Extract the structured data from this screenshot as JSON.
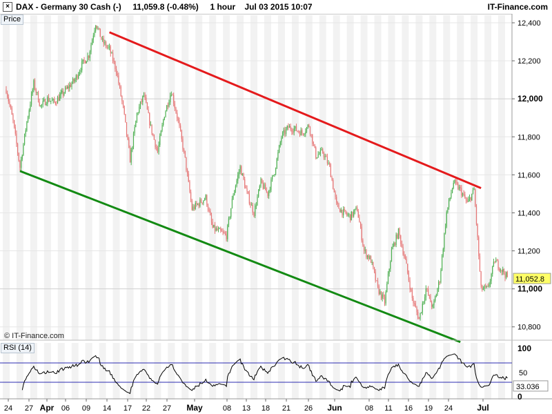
{
  "header": {
    "instrument": "DAX - Germany 30 Cash (-)",
    "last_change": "11,059.8 (-0.48%)",
    "timeframe": "1 hour",
    "datetime": "Jul 03 2015 10:07",
    "brand": "IT-Finance.com",
    "close_glyph": "×"
  },
  "price_panel": {
    "tag": "Price",
    "watermark": "© IT-Finance.com",
    "current_price_label": "11,052.8"
  },
  "rsi_panel": {
    "tag": "RSI (14)",
    "current_value_label": "33.036"
  },
  "colors": {
    "up_candle": "#4caf50",
    "down_candle": "#e57373",
    "resistance_line": "#e41a1c",
    "support_line": "#138a13",
    "rsi_line": "#000000",
    "rsi_bands": "#2b2bb0",
    "price_tag_bg": "#ffff66"
  },
  "chart_data": [
    {
      "type": "candlestick",
      "title": "DAX - Germany 30 Cash (-)",
      "ylim": [
        10730,
        12440
      ],
      "y_ticks": [
        10800,
        11000,
        11200,
        11400,
        11600,
        11800,
        12000,
        12200,
        12400
      ],
      "y_tick_labels": [
        "10,800",
        "11,000",
        "11,200",
        "11,400",
        "11,600",
        "11,800",
        "12,000",
        "12,200",
        "12,400"
      ],
      "y_bold_ticks": [
        "11,000",
        "12,000"
      ],
      "x_tick_labels": [
        "24",
        "27",
        "Apr",
        "06",
        "09",
        "14",
        "17",
        "22",
        "27",
        "May",
        "08",
        "13",
        "18",
        "21",
        "26",
        "Jun",
        "08",
        "11",
        "16",
        "19",
        "24",
        "Jul"
      ],
      "x_bold_ticks": [
        "Apr",
        "May",
        "Jun",
        "Jul"
      ],
      "vertical_grid": "alternating day bands",
      "price_path": [
        {
          "date": "Mar 24",
          "close": 12050
        },
        {
          "date": "Mar 25",
          "close": 11880
        },
        {
          "date": "Mar 26",
          "close": 11640
        },
        {
          "date": "Mar 27",
          "close": 11880
        },
        {
          "date": "Mar 30",
          "close": 12080
        },
        {
          "date": "Mar 31",
          "close": 11960
        },
        {
          "date": "Apr 01",
          "close": 12000
        },
        {
          "date": "Apr 02",
          "close": 11980
        },
        {
          "date": "Apr 07",
          "close": 12100
        },
        {
          "date": "Apr 08",
          "close": 12180
        },
        {
          "date": "Apr 09",
          "close": 12230
        },
        {
          "date": "Apr 10",
          "close": 12400
        },
        {
          "date": "Apr 13",
          "close": 12300
        },
        {
          "date": "Apr 14",
          "close": 12260
        },
        {
          "date": "Apr 15",
          "close": 12150
        },
        {
          "date": "Apr 16",
          "close": 11950
        },
        {
          "date": "Apr 17",
          "close": 11680
        },
        {
          "date": "Apr 20",
          "close": 11920
        },
        {
          "date": "Apr 21",
          "close": 12020
        },
        {
          "date": "Apr 22",
          "close": 11850
        },
        {
          "date": "Apr 23",
          "close": 11720
        },
        {
          "date": "Apr 24",
          "close": 11920
        },
        {
          "date": "Apr 27",
          "close": 12040
        },
        {
          "date": "Apr 28",
          "close": 11880
        },
        {
          "date": "Apr 29",
          "close": 11680
        },
        {
          "date": "Apr 30",
          "close": 11420
        },
        {
          "date": "May 04",
          "close": 11480
        },
        {
          "date": "May 05",
          "close": 11320
        },
        {
          "date": "May 06",
          "close": 11300
        },
        {
          "date": "May 07",
          "close": 11280
        },
        {
          "date": "May 08",
          "close": 11500
        },
        {
          "date": "May 11",
          "close": 11640
        },
        {
          "date": "May 12",
          "close": 11500
        },
        {
          "date": "May 13",
          "close": 11400
        },
        {
          "date": "May 14",
          "close": 11560
        },
        {
          "date": "May 15",
          "close": 11500
        },
        {
          "date": "May 18",
          "close": 11620
        },
        {
          "date": "May 19",
          "close": 11800
        },
        {
          "date": "May 20",
          "close": 11850
        },
        {
          "date": "May 21",
          "close": 11840
        },
        {
          "date": "May 22",
          "close": 11820
        },
        {
          "date": "May 25",
          "close": 11860
        },
        {
          "date": "May 26",
          "close": 11700
        },
        {
          "date": "May 27",
          "close": 11720
        },
        {
          "date": "May 28",
          "close": 11640
        },
        {
          "date": "May 29",
          "close": 11440
        },
        {
          "date": "Jun 01",
          "close": 11400
        },
        {
          "date": "Jun 02",
          "close": 11380
        },
        {
          "date": "Jun 03",
          "close": 11420
        },
        {
          "date": "Jun 04",
          "close": 11200
        },
        {
          "date": "Jun 05",
          "close": 11150
        },
        {
          "date": "Jun 08",
          "close": 11000
        },
        {
          "date": "Jun 09",
          "close": 10930
        },
        {
          "date": "Jun 10",
          "close": 11200
        },
        {
          "date": "Jun 11",
          "close": 11300
        },
        {
          "date": "Jun 12",
          "close": 11150
        },
        {
          "date": "Jun 15",
          "close": 10950
        },
        {
          "date": "Jun 16",
          "close": 10840
        },
        {
          "date": "Jun 17",
          "close": 11000
        },
        {
          "date": "Jun 18",
          "close": 10900
        },
        {
          "date": "Jun 19",
          "close": 11050
        },
        {
          "date": "Jun 22",
          "close": 11400
        },
        {
          "date": "Jun 23",
          "close": 11560
        },
        {
          "date": "Jun 24",
          "close": 11520
        },
        {
          "date": "Jun 25",
          "close": 11450
        },
        {
          "date": "Jun 26",
          "close": 11520
        },
        {
          "date": "Jun 29",
          "close": 11000
        },
        {
          "date": "Jun 30",
          "close": 11000
        },
        {
          "date": "Jul 01",
          "close": 11150
        },
        {
          "date": "Jul 02",
          "close": 11100
        },
        {
          "date": "Jul 03",
          "close": 11052.8
        }
      ],
      "trendlines": [
        {
          "role": "resistance",
          "from": {
            "date": "Apr 14",
            "value": 12350
          },
          "to": {
            "date": "Jun 29",
            "value": 11530
          }
        },
        {
          "role": "support",
          "from": {
            "date": "Mar 26",
            "value": 11620
          },
          "to": {
            "date": "Jun 24",
            "value": 10720
          }
        }
      ],
      "current_price": 11052.8
    },
    {
      "type": "line",
      "title": "RSI (14)",
      "ylim": [
        0,
        100
      ],
      "y_tick_labels": [
        "0",
        "50",
        "100"
      ],
      "bands": [
        30,
        70
      ],
      "current_value": 33.036
    }
  ]
}
